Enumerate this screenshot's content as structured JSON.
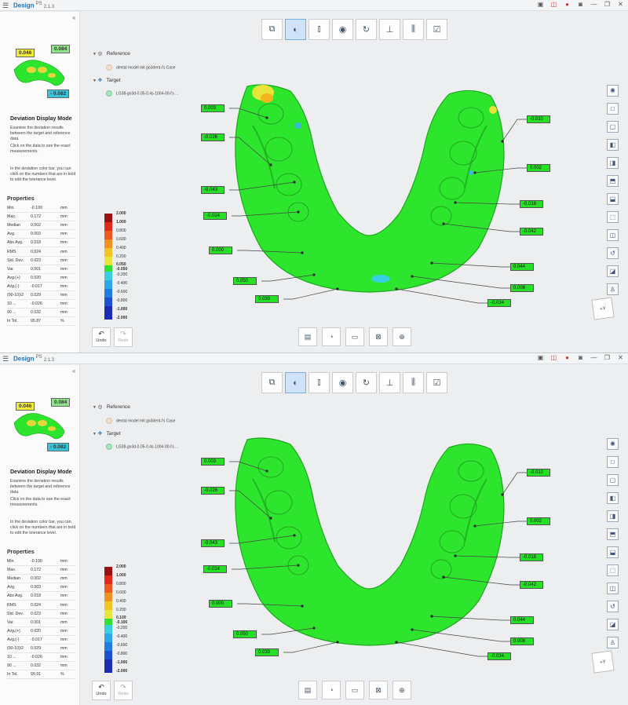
{
  "app": {
    "brand": "Design",
    "version_sup": "PS",
    "version": "2.1.3"
  },
  "panel": {
    "collapse_icon": "chevron-double-left-icon",
    "mode_title": "Deviation Display Mode",
    "desc1": "Examine the deviation results between the target and reference data.",
    "desc2": "Click on the data to see the exact measurements.",
    "desc3": "In the deviation color bar, you can click on the numbers that are in bold to edit the tolerance level.",
    "thumb_tags": {
      "a": "0.046",
      "b": "0.084",
      "c": "- 0.082"
    },
    "properties_title": "Properties"
  },
  "tree": {
    "reference_label": "Reference",
    "reference_item": "dental model mit go3dent-l's Case",
    "target_label": "Target",
    "target_item": "LG38-go3d-0.05-0.4s-1004-00-l's ..."
  },
  "buttons": {
    "undo": "Undo",
    "redo": "Redo"
  },
  "colorbar_labels": [
    "2.000",
    "1.000",
    "0.800",
    "0.600",
    "0.400",
    "0.200"
  ],
  "colorbar_labels_low": [
    "-0.200",
    "-0.400",
    "-0.600",
    "-0.800",
    "-1.000",
    "-2.000"
  ],
  "axis_label": "+Y",
  "panes": [
    {
      "properties": [
        {
          "k": "Min.",
          "v": "-0.100",
          "u": "mm"
        },
        {
          "k": "Max.",
          "v": "0.172",
          "u": "mm"
        },
        {
          "k": "Median",
          "v": "0.002",
          "u": "mm"
        },
        {
          "k": "Avg.",
          "v": "0.003",
          "u": "mm"
        },
        {
          "k": "Abs Avg.",
          "v": "0.018",
          "u": "mm"
        },
        {
          "k": "RMS",
          "v": "0.024",
          "u": "mm"
        },
        {
          "k": "Std. Dev.",
          "v": "0.023",
          "u": "mm"
        },
        {
          "k": "Var.",
          "v": "0.001",
          "u": "mm"
        },
        {
          "k": "Avg.(+)",
          "v": "0.020",
          "u": "mm"
        },
        {
          "k": "Avg.(-)",
          "v": "-0.017",
          "u": "mm"
        },
        {
          "k": "(90-10)/2",
          "v": "0.029",
          "u": "mm"
        },
        {
          "k": "10 ...",
          "v": "-0.026",
          "u": "mm"
        },
        {
          "k": "90 ...",
          "v": "0.032",
          "u": "mm"
        },
        {
          "k": "In Tol.",
          "v": "95.87",
          "u": "%"
        }
      ],
      "tol_plus": "0.050",
      "tol_minus": "-0.050",
      "measure_labels": [
        "0.003",
        "-0.026",
        "-0.043",
        "-0.014",
        "0.000",
        "0.050",
        "0.039",
        "-0.010",
        "0.002",
        "-0.018",
        "-0.042",
        "0.044",
        "0.008",
        "-0.034"
      ]
    },
    {
      "properties": [
        {
          "k": "Min.",
          "v": "-0.100",
          "u": "mm"
        },
        {
          "k": "Max.",
          "v": "0.172",
          "u": "mm"
        },
        {
          "k": "Median",
          "v": "0.002",
          "u": "mm"
        },
        {
          "k": "Avg.",
          "v": "0.003",
          "u": "mm"
        },
        {
          "k": "Abs Avg.",
          "v": "0.018",
          "u": "mm"
        },
        {
          "k": "RMS",
          "v": "0.024",
          "u": "mm"
        },
        {
          "k": "Std. Dev.",
          "v": "0.023",
          "u": "mm"
        },
        {
          "k": "Var.",
          "v": "0.001",
          "u": "mm"
        },
        {
          "k": "Avg.(+)",
          "v": "0.020",
          "u": "mm"
        },
        {
          "k": "Avg.(-)",
          "v": "-0.017",
          "u": "mm"
        },
        {
          "k": "(90-10)/2",
          "v": "0.029",
          "u": "mm"
        },
        {
          "k": "10 ...",
          "v": "-0.026",
          "u": "mm"
        },
        {
          "k": "90 ...",
          "v": "0.032",
          "u": "mm"
        },
        {
          "k": "In Tol.",
          "v": "99.91",
          "u": "%"
        }
      ],
      "tol_plus": "0.100",
      "tol_minus": "-0.100",
      "measure_labels": [
        "0.003",
        "-0.026",
        "-0.043",
        "-0.014",
        "0.000",
        "0.050",
        "0.039",
        "-0.010",
        "0.002",
        "-0.018",
        "-0.042",
        "0.044",
        "0.008",
        "-0.034"
      ]
    }
  ],
  "colors": {
    "model_green": "#2ee52e",
    "accent_blue": "#1f6fb8",
    "label_green": "#26e026"
  }
}
